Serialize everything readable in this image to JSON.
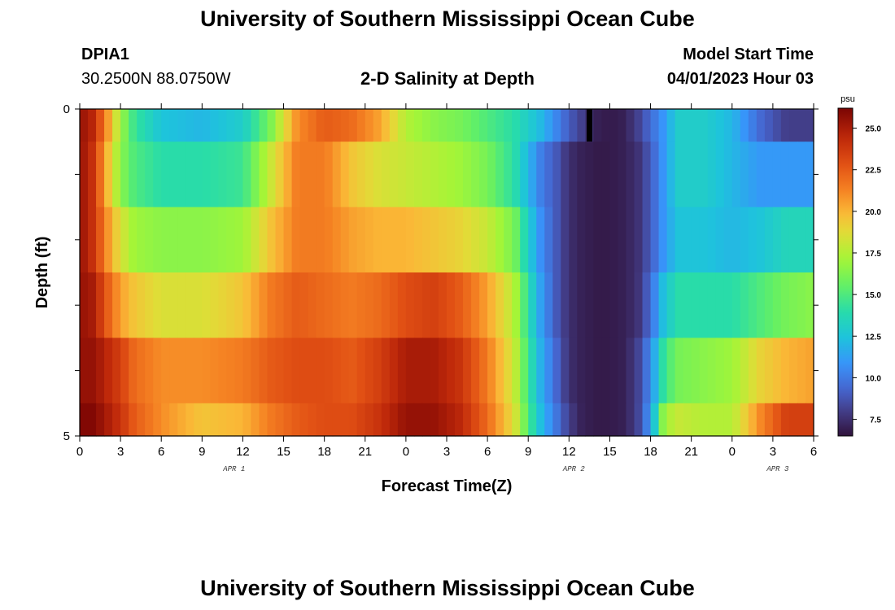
{
  "header": {
    "title": "University of Southern Mississippi Ocean Cube",
    "station": "DPIA1",
    "coordinates": "30.2500N  88.0750W",
    "plot_title": "2-D Salinity at Depth",
    "model_start_label": "Model Start Time",
    "model_start_time": "04/01/2023 Hour 03"
  },
  "footer": {
    "title": "University of Southern Mississippi Ocean Cube"
  },
  "chart_data": {
    "type": "heatmap",
    "xlabel": "Forecast Time(Z)",
    "ylabel": "Depth (ft)",
    "x_tick_labels": [
      "0",
      "3",
      "6",
      "9",
      "12",
      "15",
      "18",
      "21",
      "0",
      "3",
      "6",
      "9",
      "12",
      "15",
      "18",
      "21",
      "0",
      "3",
      "6"
    ],
    "x_hours": [
      0,
      3,
      6,
      9,
      12,
      15,
      18,
      21,
      24,
      27,
      30,
      33,
      36,
      39,
      42,
      45,
      48,
      51,
      54
    ],
    "date_labels": [
      {
        "label": "APR 1",
        "hour": 11
      },
      {
        "label": "APR 2",
        "hour": 36
      },
      {
        "label": "APR 3",
        "hour": 51
      }
    ],
    "y_tick_labels": [
      "0",
      "5"
    ],
    "ylim": [
      0,
      5
    ],
    "xlim": [
      0,
      54
    ],
    "colorbar": {
      "unit": "psu",
      "range": [
        6.5,
        26.2
      ],
      "ticks": [
        "7.5",
        "10.0",
        "12.5",
        "15.0",
        "17.5",
        "20.0",
        "22.5",
        "25.0"
      ]
    },
    "depth_layers_ft": [
      0.25,
      1.25,
      2.25,
      3.25,
      4.25,
      4.75
    ],
    "key_hours": [
      0,
      1,
      2,
      3,
      4,
      6,
      9,
      12,
      14,
      16,
      18,
      20,
      22,
      24,
      26,
      28,
      30,
      32,
      33,
      34,
      35,
      36,
      37,
      38,
      39,
      40,
      41,
      42,
      43,
      44,
      46,
      48,
      50,
      52,
      54
    ],
    "salinity_psu": [
      [
        25.5,
        24.5,
        21.0,
        17.0,
        14.5,
        12.5,
        12.0,
        13.0,
        16.0,
        21.0,
        22.5,
        22.0,
        20.5,
        17.5,
        16.5,
        16.0,
        15.0,
        14.0,
        13.0,
        12.0,
        10.5,
        9.0,
        8.0,
        7.0,
        6.8,
        7.0,
        8.0,
        9.5,
        11.0,
        13.0,
        13.0,
        12.0,
        9.5,
        8.0,
        8.0
      ],
      [
        25.5,
        24.0,
        20.0,
        16.5,
        15.0,
        14.0,
        14.0,
        14.5,
        18.0,
        21.5,
        21.5,
        19.5,
        18.5,
        18.0,
        17.5,
        17.0,
        16.0,
        14.0,
        12.0,
        10.0,
        9.0,
        7.5,
        7.0,
        6.8,
        6.8,
        7.0,
        7.5,
        9.0,
        11.0,
        13.0,
        13.0,
        12.0,
        11.0,
        11.0,
        11.0
      ],
      [
        25.5,
        24.0,
        21.0,
        18.5,
        17.0,
        16.5,
        16.5,
        17.0,
        19.5,
        21.5,
        21.5,
        20.5,
        20.0,
        20.0,
        19.5,
        19.0,
        18.0,
        16.0,
        13.0,
        10.5,
        9.0,
        7.5,
        7.0,
        6.8,
        6.8,
        7.0,
        7.5,
        9.0,
        11.0,
        12.5,
        12.5,
        12.0,
        12.5,
        13.5,
        13.5
      ],
      [
        25.5,
        25.0,
        22.5,
        20.5,
        19.5,
        18.5,
        18.5,
        19.5,
        21.5,
        22.5,
        22.0,
        21.5,
        22.0,
        23.0,
        23.5,
        22.5,
        20.5,
        17.5,
        14.0,
        11.0,
        9.0,
        7.5,
        7.0,
        6.8,
        6.8,
        7.0,
        7.5,
        9.5,
        12.5,
        14.0,
        14.0,
        14.0,
        15.0,
        16.0,
        16.5
      ],
      [
        25.5,
        25.5,
        24.5,
        23.5,
        22.0,
        21.0,
        21.0,
        21.5,
        22.5,
        23.0,
        23.0,
        22.5,
        23.5,
        25.0,
        25.0,
        24.0,
        21.5,
        18.0,
        14.5,
        11.5,
        9.5,
        7.5,
        7.0,
        6.8,
        6.8,
        7.0,
        8.0,
        10.5,
        14.5,
        16.0,
        16.5,
        17.0,
        19.0,
        20.0,
        20.5
      ],
      [
        26.0,
        26.0,
        25.0,
        24.0,
        22.5,
        21.0,
        19.5,
        20.0,
        21.5,
        22.5,
        23.0,
        23.0,
        24.0,
        25.5,
        25.5,
        24.5,
        22.0,
        18.5,
        15.0,
        12.0,
        10.0,
        8.0,
        7.0,
        6.8,
        6.8,
        7.0,
        8.0,
        11.0,
        17.0,
        18.0,
        17.5,
        17.5,
        21.0,
        23.5,
        23.5
      ]
    ]
  }
}
